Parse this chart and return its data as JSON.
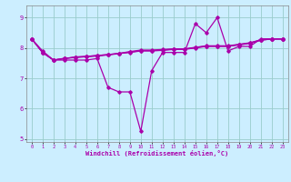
{
  "xlabel": "Windchill (Refroidissement éolien,°C)",
  "bg_color": "#cceeff",
  "line_color": "#aa00aa",
  "grid_color": "#99cccc",
  "xlim": [
    -0.5,
    23.5
  ],
  "ylim": [
    4.9,
    9.4
  ],
  "xticks": [
    0,
    1,
    2,
    3,
    4,
    5,
    6,
    7,
    8,
    9,
    10,
    11,
    12,
    13,
    14,
    15,
    16,
    17,
    18,
    19,
    20,
    21,
    22,
    23
  ],
  "yticks": [
    5,
    6,
    7,
    8,
    9
  ],
  "series1": {
    "x": [
      0,
      1,
      2,
      3,
      4,
      5,
      6,
      7,
      8,
      9,
      10,
      11,
      12,
      13,
      14,
      15,
      16,
      17,
      18,
      19,
      20,
      21,
      22,
      23
    ],
    "y": [
      8.3,
      7.9,
      7.6,
      7.6,
      7.6,
      7.6,
      7.65,
      6.7,
      6.55,
      6.55,
      5.25,
      7.25,
      7.85,
      7.85,
      7.85,
      8.8,
      8.5,
      9.0,
      7.9,
      8.05,
      8.05,
      8.3,
      8.3,
      8.3
    ]
  },
  "series2": {
    "x": [
      0,
      1,
      2,
      3,
      4,
      5,
      6,
      7,
      8,
      9,
      10,
      11,
      12,
      13,
      14,
      15,
      16,
      17,
      18,
      19,
      20,
      21,
      22,
      23
    ],
    "y": [
      8.3,
      7.85,
      7.6,
      7.65,
      7.7,
      7.72,
      7.75,
      7.78,
      7.82,
      7.85,
      7.9,
      7.9,
      7.92,
      7.95,
      7.95,
      8.0,
      8.05,
      8.05,
      8.05,
      8.1,
      8.15,
      8.25,
      8.3,
      8.3
    ]
  },
  "series3": {
    "x": [
      0,
      1,
      2,
      3,
      4,
      5,
      6,
      7,
      8,
      9,
      10,
      11,
      12,
      13,
      14,
      15,
      16,
      17,
      18,
      19,
      20,
      21,
      22,
      23
    ],
    "y": [
      8.3,
      7.85,
      7.6,
      7.65,
      7.7,
      7.72,
      7.75,
      7.78,
      7.82,
      7.88,
      7.93,
      7.93,
      7.95,
      7.97,
      7.97,
      8.02,
      8.07,
      8.07,
      8.07,
      8.12,
      8.17,
      8.27,
      8.3,
      8.3
    ]
  },
  "series4": {
    "x": [
      0,
      1,
      2,
      3,
      4,
      5,
      6,
      7,
      8,
      9,
      10,
      11,
      12,
      13,
      14,
      15,
      16,
      17,
      18,
      19,
      20,
      21,
      22,
      23
    ],
    "y": [
      8.3,
      7.85,
      7.6,
      7.66,
      7.68,
      7.71,
      7.73,
      7.77,
      7.81,
      7.86,
      7.91,
      7.91,
      7.93,
      7.96,
      7.96,
      8.01,
      8.06,
      8.06,
      8.06,
      8.11,
      8.16,
      8.26,
      8.29,
      8.29
    ]
  }
}
